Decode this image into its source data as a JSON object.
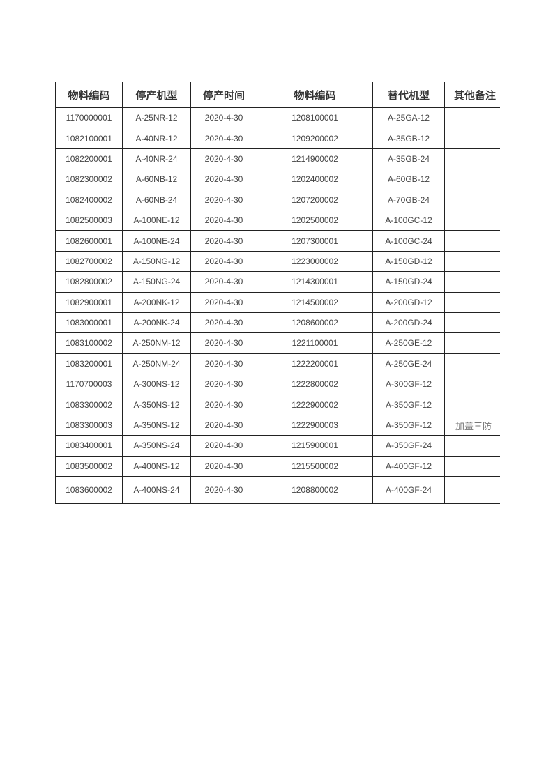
{
  "table": {
    "headers": [
      "物料编码",
      "停产机型",
      "停产时间",
      "物料编码",
      "替代机型",
      "其他备注"
    ],
    "rows": [
      [
        "1170000001",
        "A-25NR-12",
        "2020-4-30",
        "1208100001",
        "A-25GA-12",
        ""
      ],
      [
        "1082100001",
        "A-40NR-12",
        "2020-4-30",
        "1209200002",
        "A-35GB-12",
        ""
      ],
      [
        "1082200001",
        "A-40NR-24",
        "2020-4-30",
        "1214900002",
        "A-35GB-24",
        ""
      ],
      [
        "1082300002",
        "A-60NB-12",
        "2020-4-30",
        "1202400002",
        "A-60GB-12",
        ""
      ],
      [
        "1082400002",
        "A-60NB-24",
        "2020-4-30",
        "1207200002",
        "A-70GB-24",
        ""
      ],
      [
        "1082500003",
        "A-100NE-12",
        "2020-4-30",
        "1202500002",
        "A-100GC-12",
        ""
      ],
      [
        "1082600001",
        "A-100NE-24",
        "2020-4-30",
        "1207300001",
        "A-100GC-24",
        ""
      ],
      [
        "1082700002",
        "A-150NG-12",
        "2020-4-30",
        "1223000002",
        "A-150GD-12",
        ""
      ],
      [
        "1082800002",
        "A-150NG-24",
        "2020-4-30",
        "1214300001",
        "A-150GD-24",
        ""
      ],
      [
        "1082900001",
        "A-200NK-12",
        "2020-4-30",
        "1214500002",
        "A-200GD-12",
        ""
      ],
      [
        "1083000001",
        "A-200NK-24",
        "2020-4-30",
        "1208600002",
        "A-200GD-24",
        ""
      ],
      [
        "1083100002",
        "A-250NM-12",
        "2020-4-30",
        "1221100001",
        "A-250GE-12",
        ""
      ],
      [
        "1083200001",
        "A-250NM-24",
        "2020-4-30",
        "1222200001",
        "A-250GE-24",
        ""
      ],
      [
        "1170700003",
        "A-300NS-12",
        "2020-4-30",
        "1222800002",
        "A-300GF-12",
        ""
      ],
      [
        "1083300002",
        "A-350NS-12",
        "2020-4-30",
        "1222900002",
        "A-350GF-12",
        ""
      ],
      [
        "1083300003",
        "A-350NS-12",
        "2020-4-30",
        "1222900003",
        "A-350GF-12",
        "加盖三防"
      ],
      [
        "1083400001",
        "A-350NS-24",
        "2020-4-30",
        "1215900001",
        "A-350GF-24",
        ""
      ],
      [
        "1083500002",
        "A-400NS-12",
        "2020-4-30",
        "1215500002",
        "A-400GF-12",
        ""
      ],
      [
        "1083600002",
        "A-400NS-24",
        "2020-4-30",
        "1208800002",
        "A-400GF-24",
        ""
      ]
    ]
  }
}
